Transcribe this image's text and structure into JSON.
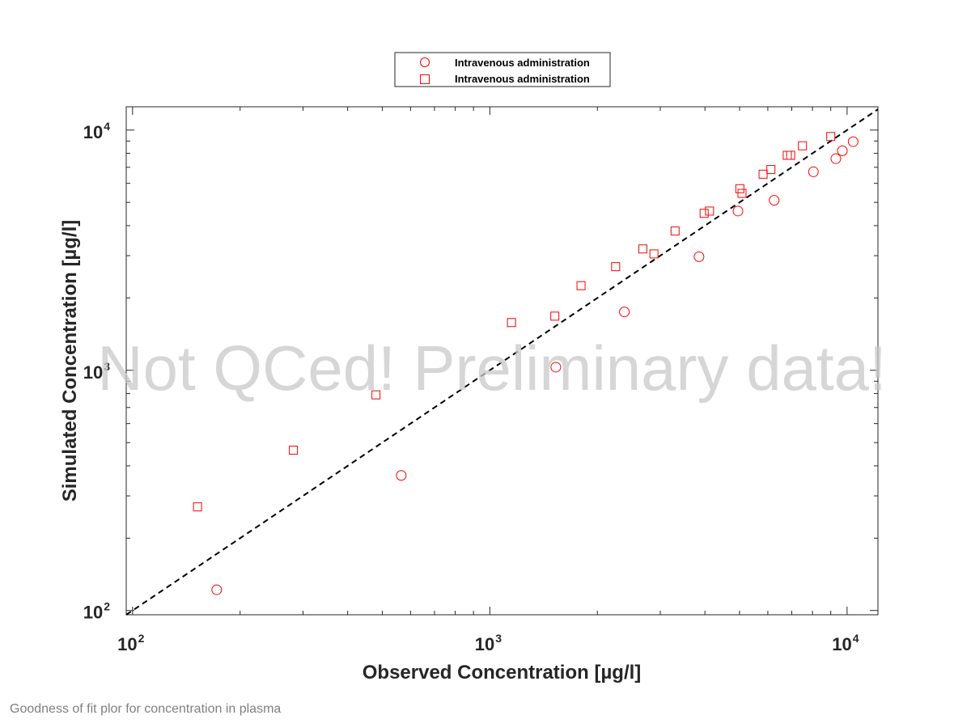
{
  "chart_data": {
    "type": "scatter",
    "title": "",
    "xlabel": "Observed Concentration [µg/l]",
    "ylabel": "Simulated Concentration [µg/l]",
    "xscale": "log",
    "yscale": "log",
    "xlim": [
      96,
      12200
    ],
    "ylim": [
      96,
      12500
    ],
    "xticks": [
      {
        "base": "10",
        "exp": "2",
        "value": 100
      },
      {
        "base": "10",
        "exp": "3",
        "value": 1000
      },
      {
        "base": "10",
        "exp": "4",
        "value": 10000
      }
    ],
    "yticks": [
      {
        "base": "10",
        "exp": "2",
        "value": 100
      },
      {
        "base": "10",
        "exp": "3",
        "value": 1000
      },
      {
        "base": "10",
        "exp": "4",
        "value": 10000
      }
    ],
    "grid": false,
    "legend_position": "top-center",
    "identity_line": {
      "style": "dashed",
      "color": "#000000"
    },
    "series": [
      {
        "name": "Intravenous administration",
        "marker": "circle",
        "color": "#ff0000",
        "points": [
          {
            "x": 172,
            "y": 122
          },
          {
            "x": 565,
            "y": 365
          },
          {
            "x": 1530,
            "y": 1030
          },
          {
            "x": 2380,
            "y": 1750
          },
          {
            "x": 3850,
            "y": 2970
          },
          {
            "x": 4950,
            "y": 4600
          },
          {
            "x": 6250,
            "y": 5100
          },
          {
            "x": 8050,
            "y": 6700
          },
          {
            "x": 9300,
            "y": 7600
          },
          {
            "x": 9700,
            "y": 8200
          },
          {
            "x": 10400,
            "y": 8950
          }
        ]
      },
      {
        "name": "Intravenous administration",
        "marker": "square",
        "color": "#ff0000",
        "points": [
          {
            "x": 152,
            "y": 270
          },
          {
            "x": 282,
            "y": 465
          },
          {
            "x": 480,
            "y": 790
          },
          {
            "x": 1150,
            "y": 1580
          },
          {
            "x": 1520,
            "y": 1680
          },
          {
            "x": 1800,
            "y": 2250
          },
          {
            "x": 2250,
            "y": 2700
          },
          {
            "x": 2680,
            "y": 3200
          },
          {
            "x": 2880,
            "y": 3050
          },
          {
            "x": 3300,
            "y": 3800
          },
          {
            "x": 3980,
            "y": 4500
          },
          {
            "x": 4120,
            "y": 4600
          },
          {
            "x": 5010,
            "y": 5700
          },
          {
            "x": 5080,
            "y": 5450
          },
          {
            "x": 5820,
            "y": 6550
          },
          {
            "x": 6120,
            "y": 6850
          },
          {
            "x": 6800,
            "y": 7850
          },
          {
            "x": 6950,
            "y": 7850
          },
          {
            "x": 7500,
            "y": 8600
          },
          {
            "x": 9000,
            "y": 9400
          }
        ]
      }
    ]
  },
  "watermark": "Not QCed! Preliminary data!",
  "caption": "Goodness of fit plor for concentration in plasma"
}
